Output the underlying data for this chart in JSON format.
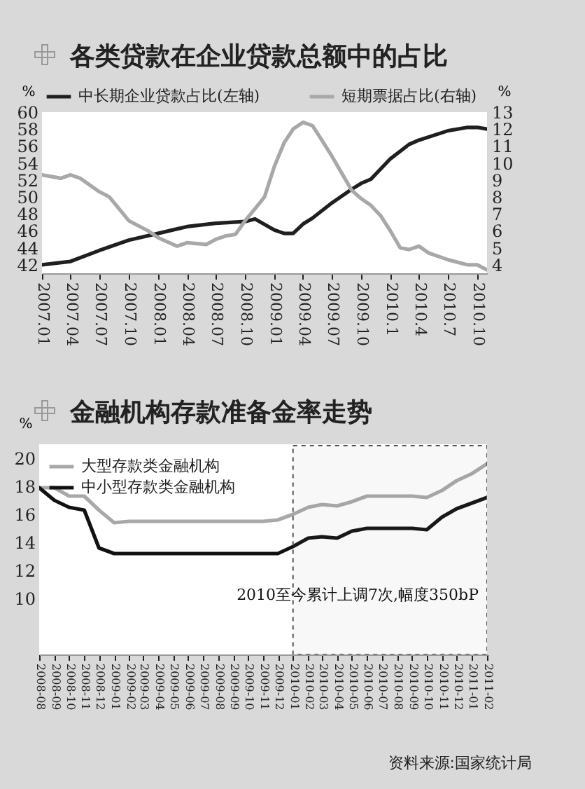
{
  "chart_data": [
    {
      "type": "line",
      "title": "各类贷款在企业贷款总额中的占比",
      "ylabel": "%",
      "y2label": "%",
      "legend": "top",
      "xlim": [
        "2007-01",
        "2010-11"
      ],
      "xticks": [
        {
          "value": "2007-01",
          "label": "2007.01"
        },
        {
          "value": "2007-04",
          "label": "2007.04"
        },
        {
          "value": "2007-07",
          "label": "2007.07"
        },
        {
          "value": "2007-10",
          "label": "2007.10"
        },
        {
          "value": "2008-01",
          "label": "2008.01"
        },
        {
          "value": "2008-04",
          "label": "2008.04"
        },
        {
          "value": "2008-07",
          "label": "2008.07"
        },
        {
          "value": "2008-10",
          "label": "2008.10"
        },
        {
          "value": "2009-01",
          "label": "2009.01"
        },
        {
          "value": "2009-04",
          "label": "2009.04"
        },
        {
          "value": "2009-07",
          "label": "2009.07"
        },
        {
          "value": "2009-10",
          "label": "2009.10"
        },
        {
          "value": "2010-01",
          "label": "2010.1"
        },
        {
          "value": "2010-04",
          "label": "2010.4"
        },
        {
          "value": "2010-07",
          "label": "2010.7"
        },
        {
          "value": "2010-10",
          "label": "2010.10"
        }
      ],
      "ylim": [
        41,
        60
      ],
      "yticks": [
        42,
        44,
        46,
        48,
        50,
        52,
        54,
        56,
        58,
        60
      ],
      "y2lim": [
        3.5,
        13
      ],
      "y2ticks": [
        4,
        5,
        6,
        7,
        8,
        9,
        10,
        11,
        12,
        13
      ],
      "series": [
        {
          "name": "中长期企业贷款占比(左轴)",
          "color": "#1f1f1f",
          "x": [
            "2007-01",
            "2007-04",
            "2007-07",
            "2007-10",
            "2008-01",
            "2008-04",
            "2008-07",
            "2008-10",
            "2008-11",
            "2009-01",
            "2009-02",
            "2009-03",
            "2009-04",
            "2009-05",
            "2009-07",
            "2009-09",
            "2009-10",
            "2009-11",
            "2010-01",
            "2010-03",
            "2010-04",
            "2010-07",
            "2010-09",
            "2010-10",
            "2010-11"
          ],
          "values": [
            42.0,
            42.4,
            43.7,
            44.9,
            45.7,
            46.5,
            46.9,
            47.1,
            47.4,
            46.1,
            45.7,
            45.7,
            46.8,
            47.5,
            49.3,
            50.9,
            51.6,
            52.1,
            54.5,
            56.2,
            56.7,
            57.8,
            58.2,
            58.2,
            58.0
          ]
        },
        {
          "name": "短期票据占比(右轴)",
          "color": "#a8a8a8",
          "axis": "y2",
          "x": [
            "2007-01",
            "2007-03",
            "2007-04",
            "2007-05",
            "2007-07",
            "2007-08",
            "2007-10",
            "2007-12",
            "2008-01",
            "2008-03",
            "2008-04",
            "2008-06",
            "2008-07",
            "2008-08",
            "2008-09",
            "2008-10",
            "2008-11",
            "2008-12",
            "2009-01",
            "2009-02",
            "2009-03",
            "2009-04",
            "2009-05",
            "2009-06",
            "2009-07",
            "2009-08",
            "2009-09",
            "2009-10",
            "2009-11",
            "2009-12",
            "2010-01",
            "2010-02",
            "2010-03",
            "2010-04",
            "2010-05",
            "2010-07",
            "2010-09",
            "2010-10",
            "2010-11"
          ],
          "values": [
            9.3,
            9.1,
            9.3,
            9.1,
            8.3,
            8.0,
            6.6,
            6.0,
            5.6,
            5.1,
            5.3,
            5.2,
            5.5,
            5.7,
            5.8,
            6.6,
            7.3,
            8.0,
            9.8,
            11.2,
            12.0,
            12.4,
            12.2,
            11.3,
            10.4,
            9.4,
            8.4,
            7.9,
            7.5,
            6.9,
            6.0,
            5.0,
            4.9,
            5.1,
            4.7,
            4.3,
            4.0,
            4.0,
            3.7
          ]
        }
      ]
    },
    {
      "type": "line",
      "title": "金融机构存款准备金率走势",
      "ylabel": "%",
      "legend": "top left",
      "xlim": [
        "2008-08",
        "2011-02"
      ],
      "ylim": [
        6,
        21
      ],
      "yticks": [
        10,
        12,
        14,
        16,
        18,
        20
      ],
      "xticks": [
        {
          "value": "2008-08",
          "label": "2008-08"
        },
        {
          "value": "2008-09",
          "label": "2008-09"
        },
        {
          "value": "2008-10",
          "label": "2008-10"
        },
        {
          "value": "2008-11",
          "label": "2008-11"
        },
        {
          "value": "2008-12",
          "label": "2008-12"
        },
        {
          "value": "2009-01",
          "label": "2009-01"
        },
        {
          "value": "2009-02",
          "label": "2009-02"
        },
        {
          "value": "2009-03",
          "label": "2009-03"
        },
        {
          "value": "2009-04",
          "label": "2009-04"
        },
        {
          "value": "2009-05",
          "label": "2009-05"
        },
        {
          "value": "2009-06",
          "label": "2009-06"
        },
        {
          "value": "2009-07",
          "label": "2009-07"
        },
        {
          "value": "2009-08",
          "label": "2009-08"
        },
        {
          "value": "2009-09",
          "label": "2009-09"
        },
        {
          "value": "2009-10",
          "label": "2009-10"
        },
        {
          "value": "2009-11",
          "label": "2009-11"
        },
        {
          "value": "2009-12",
          "label": "2009-12"
        },
        {
          "value": "2010-01",
          "label": "2010-01"
        },
        {
          "value": "2010-02",
          "label": "2010-02"
        },
        {
          "value": "2010-03",
          "label": "2010-03"
        },
        {
          "value": "2010-04",
          "label": "2010-04"
        },
        {
          "value": "2010-05",
          "label": "2010-05"
        },
        {
          "value": "2010-06",
          "label": "2010-06"
        },
        {
          "value": "2010-07",
          "label": "2010-07"
        },
        {
          "value": "2010-08",
          "label": "2010-08"
        },
        {
          "value": "2010-09",
          "label": "2010-09"
        },
        {
          "value": "2010-10",
          "label": "2010-10"
        },
        {
          "value": "2010-11",
          "label": "2010-11"
        },
        {
          "value": "2010-12",
          "label": "2010-12"
        },
        {
          "value": "2011-01",
          "label": "2011-01"
        },
        {
          "value": "2011-02",
          "label": "2011-02"
        }
      ],
      "x": [
        "2008-08",
        "2008-09",
        "2008-10",
        "2008-11",
        "2008-12",
        "2009-01",
        "2009-02",
        "2009-03",
        "2009-04",
        "2009-05",
        "2009-06",
        "2009-07",
        "2009-08",
        "2009-09",
        "2009-10",
        "2009-11",
        "2009-12",
        "2010-01",
        "2010-02",
        "2010-03",
        "2010-04",
        "2010-05",
        "2010-06",
        "2010-07",
        "2010-08",
        "2010-09",
        "2010-10",
        "2010-11",
        "2010-12",
        "2011-01",
        "2011-02"
      ],
      "series": [
        {
          "name": "大型存款类金融机构",
          "color": "#a8a8a8",
          "values": [
            17.9,
            17.9,
            17.3,
            17.3,
            16.3,
            15.4,
            15.5,
            15.5,
            15.5,
            15.5,
            15.5,
            15.5,
            15.5,
            15.5,
            15.5,
            15.5,
            15.6,
            16.0,
            16.5,
            16.7,
            16.6,
            16.9,
            17.3,
            17.3,
            17.3,
            17.3,
            17.2,
            17.7,
            18.4,
            18.9,
            19.6
          ]
        },
        {
          "name": "中小型存款类金融机构",
          "color": "#111111",
          "values": [
            17.9,
            17.0,
            16.5,
            16.3,
            13.6,
            13.2,
            13.2,
            13.2,
            13.2,
            13.2,
            13.2,
            13.2,
            13.2,
            13.2,
            13.2,
            13.2,
            13.2,
            13.7,
            14.3,
            14.4,
            14.3,
            14.8,
            15.0,
            15.0,
            15.0,
            15.0,
            14.9,
            15.8,
            16.4,
            16.8,
            17.2
          ]
        }
      ],
      "bands": [
        {
          "axis": "x",
          "from": "2010-01",
          "to": "2011-02",
          "label": "2010至今累计上调7次,幅度350bP"
        }
      ],
      "annotations": [
        "资料来源:国家统计局"
      ]
    }
  ]
}
